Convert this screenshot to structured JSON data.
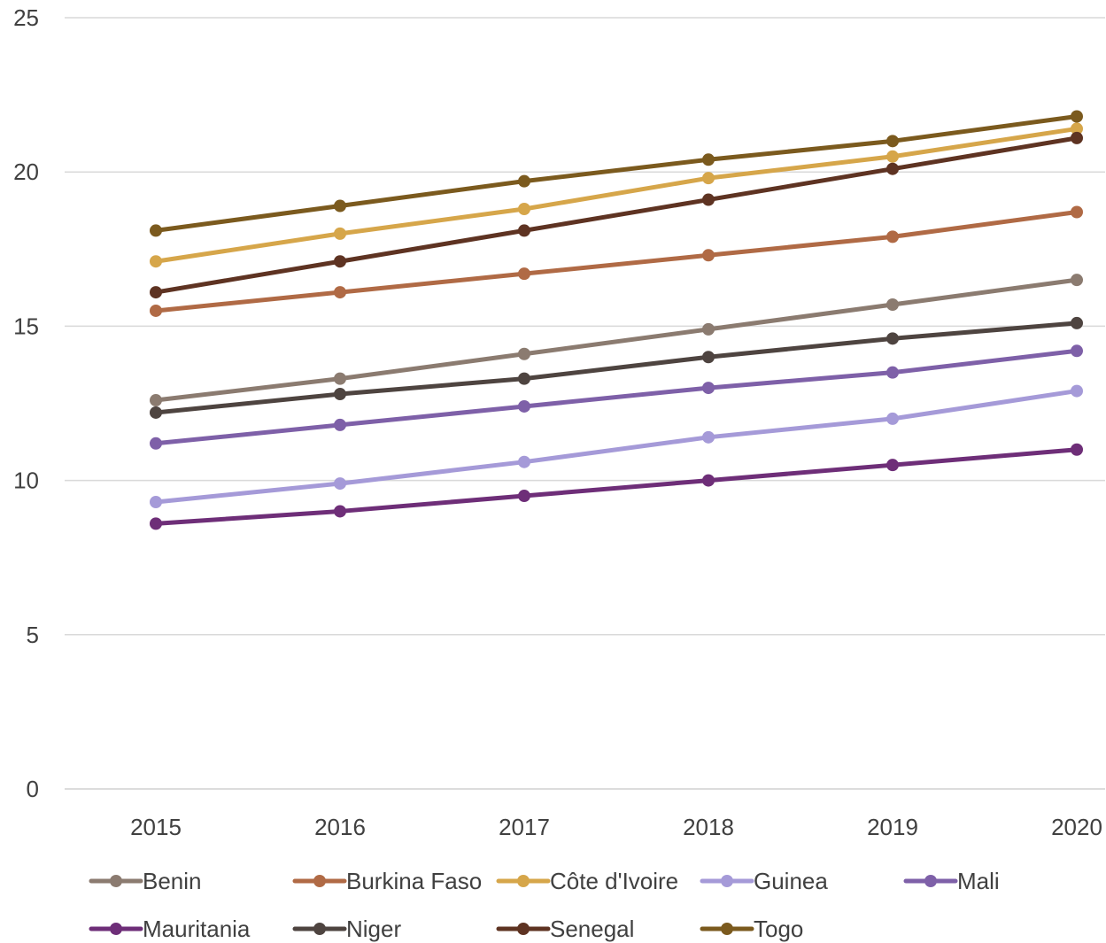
{
  "chart_data": {
    "type": "line",
    "title": "",
    "xlabel": "",
    "ylabel": "",
    "x": [
      "2015",
      "2016",
      "2017",
      "2018",
      "2019",
      "2020"
    ],
    "ylim": [
      0,
      25
    ],
    "yticks": [
      "0",
      "5",
      "10",
      "15",
      "20",
      "25"
    ],
    "grid": "horizontal",
    "legend_position": "bottom",
    "series": [
      {
        "name": "Benin",
        "color": "#8B7B70",
        "values": [
          12.6,
          13.3,
          14.1,
          14.9,
          15.7,
          16.5
        ]
      },
      {
        "name": "Burkina Faso",
        "color": "#B06A45",
        "values": [
          15.5,
          16.1,
          16.7,
          17.3,
          17.9,
          18.7
        ]
      },
      {
        "name": "Côte d'Ivoire",
        "color": "#D6A64A",
        "values": [
          17.1,
          18.0,
          18.8,
          19.8,
          20.5,
          21.4
        ]
      },
      {
        "name": "Guinea",
        "color": "#A59AD8",
        "values": [
          9.3,
          9.9,
          10.6,
          11.4,
          12.0,
          12.9
        ]
      },
      {
        "name": "Mali",
        "color": "#7E60A8",
        "values": [
          11.2,
          11.8,
          12.4,
          13.0,
          13.5,
          14.2
        ]
      },
      {
        "name": "Mauritania",
        "color": "#6E2E78",
        "values": [
          8.6,
          9.0,
          9.5,
          10.0,
          10.5,
          11.0
        ]
      },
      {
        "name": "Niger",
        "color": "#4E4440",
        "values": [
          12.2,
          12.8,
          13.3,
          14.0,
          14.6,
          15.1
        ]
      },
      {
        "name": "Senegal",
        "color": "#5E3322",
        "values": [
          16.1,
          17.1,
          18.1,
          19.1,
          20.1,
          21.1
        ]
      },
      {
        "name": "Togo",
        "color": "#7B5A1E",
        "values": [
          18.1,
          18.9,
          19.7,
          20.4,
          21.0,
          21.8
        ]
      }
    ]
  }
}
